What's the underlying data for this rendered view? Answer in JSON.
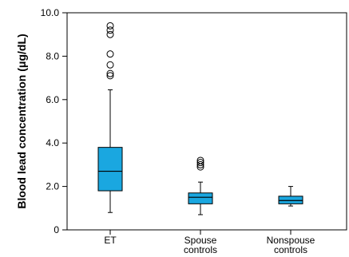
{
  "chart_data": {
    "type": "box",
    "title": "",
    "xlabel": "",
    "ylabel": "Blood lead concentration (μg/dL)",
    "ylim": [
      0,
      10
    ],
    "y_ticks": [
      {
        "value": 0,
        "label": "0"
      },
      {
        "value": 2,
        "label": "2.0"
      },
      {
        "value": 4,
        "label": "4.0"
      },
      {
        "value": 6,
        "label": "6.0"
      },
      {
        "value": 8,
        "label": "8.0"
      },
      {
        "value": 10,
        "label": "10.0"
      }
    ],
    "grid": false,
    "box_color": "#1aa7e0",
    "categories": [
      {
        "lines": [
          "ET"
        ]
      },
      {
        "lines": [
          "Spouse",
          "controls"
        ]
      },
      {
        "lines": [
          "Nonspouse",
          "controls"
        ]
      }
    ],
    "boxes": [
      {
        "whisker_low": 0.8,
        "q1": 1.8,
        "median": 2.7,
        "q3": 3.8,
        "whisker_high": 6.45,
        "outliers": [
          7.1,
          7.2,
          7.6,
          8.1,
          9.0,
          9.2,
          9.4
        ]
      },
      {
        "whisker_low": 0.7,
        "q1": 1.2,
        "median": 1.5,
        "q3": 1.7,
        "whisker_high": 2.2,
        "outliers": [
          2.9,
          3.0,
          3.1,
          3.2
        ]
      },
      {
        "whisker_low": 1.1,
        "q1": 1.2,
        "median": 1.35,
        "q3": 1.55,
        "whisker_high": 2.0,
        "outliers": []
      }
    ]
  }
}
